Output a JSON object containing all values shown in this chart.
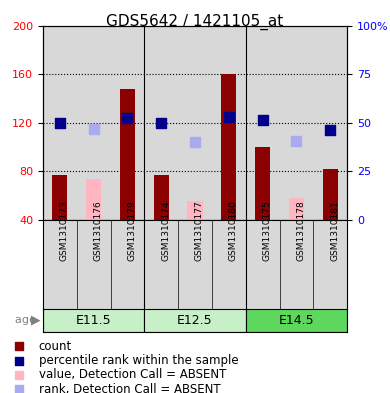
{
  "title": "GDS5642 / 1421105_at",
  "samples": [
    "GSM1310173",
    "GSM1310176",
    "GSM1310179",
    "GSM1310174",
    "GSM1310177",
    "GSM1310180",
    "GSM1310175",
    "GSM1310178",
    "GSM1310181"
  ],
  "age_groups": [
    {
      "label": "E11.5",
      "start": 0,
      "end": 3
    },
    {
      "label": "E12.5",
      "start": 3,
      "end": 6
    },
    {
      "label": "E14.5",
      "start": 6,
      "end": 9
    }
  ],
  "count_values": [
    77,
    null,
    148,
    77,
    null,
    160,
    100,
    null,
    82
  ],
  "absent_value": [
    null,
    74,
    null,
    null,
    56,
    null,
    null,
    58,
    null
  ],
  "rank_present": [
    120,
    null,
    124,
    120,
    null,
    125,
    122,
    null,
    114
  ],
  "rank_absent": [
    null,
    115,
    null,
    null,
    104,
    null,
    null,
    105,
    null
  ],
  "ylim_left": [
    40,
    200
  ],
  "ylim_right": [
    0,
    100
  ],
  "yticks_left": [
    40,
    80,
    120,
    160,
    200
  ],
  "yticks_right": [
    0,
    25,
    50,
    75,
    100
  ],
  "ytick_labels_right": [
    "0",
    "25",
    "50",
    "75",
    "100%"
  ],
  "color_count": "#8B0000",
  "color_absent_value": "#FFB6C1",
  "color_rank_present": "#00008B",
  "color_rank_absent": "#AAAAEE",
  "color_grid": "#000000",
  "bg_plot": "#D8D8D8",
  "bg_label_area": "#D8D8D8",
  "bg_age_light": "#C8F0C8",
  "bg_age_dark": "#5DD85D",
  "title_fontsize": 11,
  "tick_fontsize": 8,
  "legend_fontsize": 8.5,
  "age_row_fontsize": 9,
  "marker_size_rank": 55
}
